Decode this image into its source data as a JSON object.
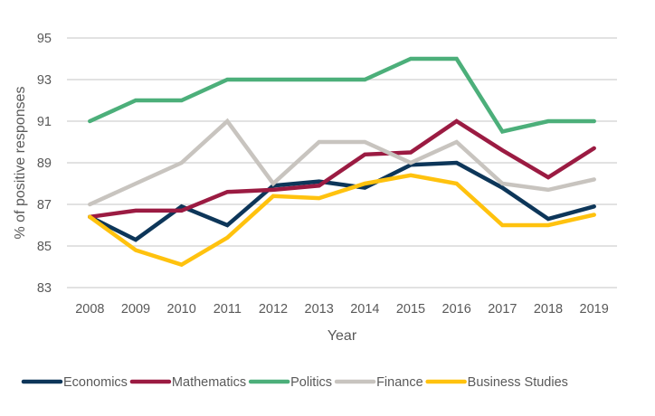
{
  "chart_data": {
    "type": "line",
    "title": "",
    "xlabel": "Year",
    "ylabel": "% of positive responses",
    "x": [
      "2008",
      "2009",
      "2010",
      "2011",
      "2012",
      "2013",
      "2014",
      "2015",
      "2016",
      "2017",
      "2018",
      "2019"
    ],
    "ylim": [
      83,
      95
    ],
    "yticks": [
      "83",
      "85",
      "87",
      "89",
      "91",
      "93",
      "95"
    ],
    "grid": true,
    "legend_position": "bottom",
    "series": [
      {
        "name": "Economics",
        "color": "#0d3659",
        "values": [
          86.4,
          85.3,
          86.9,
          86.0,
          87.9,
          88.1,
          87.8,
          88.9,
          89.0,
          87.8,
          86.3,
          86.9
        ]
      },
      {
        "name": "Mathematics",
        "color": "#9b1b42",
        "values": [
          86.4,
          86.7,
          86.7,
          87.6,
          87.7,
          87.9,
          89.4,
          89.5,
          91.0,
          89.6,
          88.3,
          89.7
        ]
      },
      {
        "name": "Politics",
        "color": "#4caf7a",
        "values": [
          91.0,
          92.0,
          92.0,
          93.0,
          93.0,
          93.0,
          93.0,
          94.0,
          94.0,
          90.5,
          91.0,
          91.0
        ]
      },
      {
        "name": "Finance",
        "color": "#c8c4bf",
        "values": [
          87.0,
          88.0,
          89.0,
          91.0,
          88.0,
          90.0,
          90.0,
          89.0,
          90.0,
          88.0,
          87.7,
          88.2
        ]
      },
      {
        "name": "Business Studies",
        "color": "#ffc20e",
        "values": [
          86.4,
          84.8,
          84.1,
          85.4,
          87.4,
          87.3,
          88.0,
          88.4,
          88.0,
          86.0,
          86.0,
          86.5
        ]
      }
    ]
  }
}
